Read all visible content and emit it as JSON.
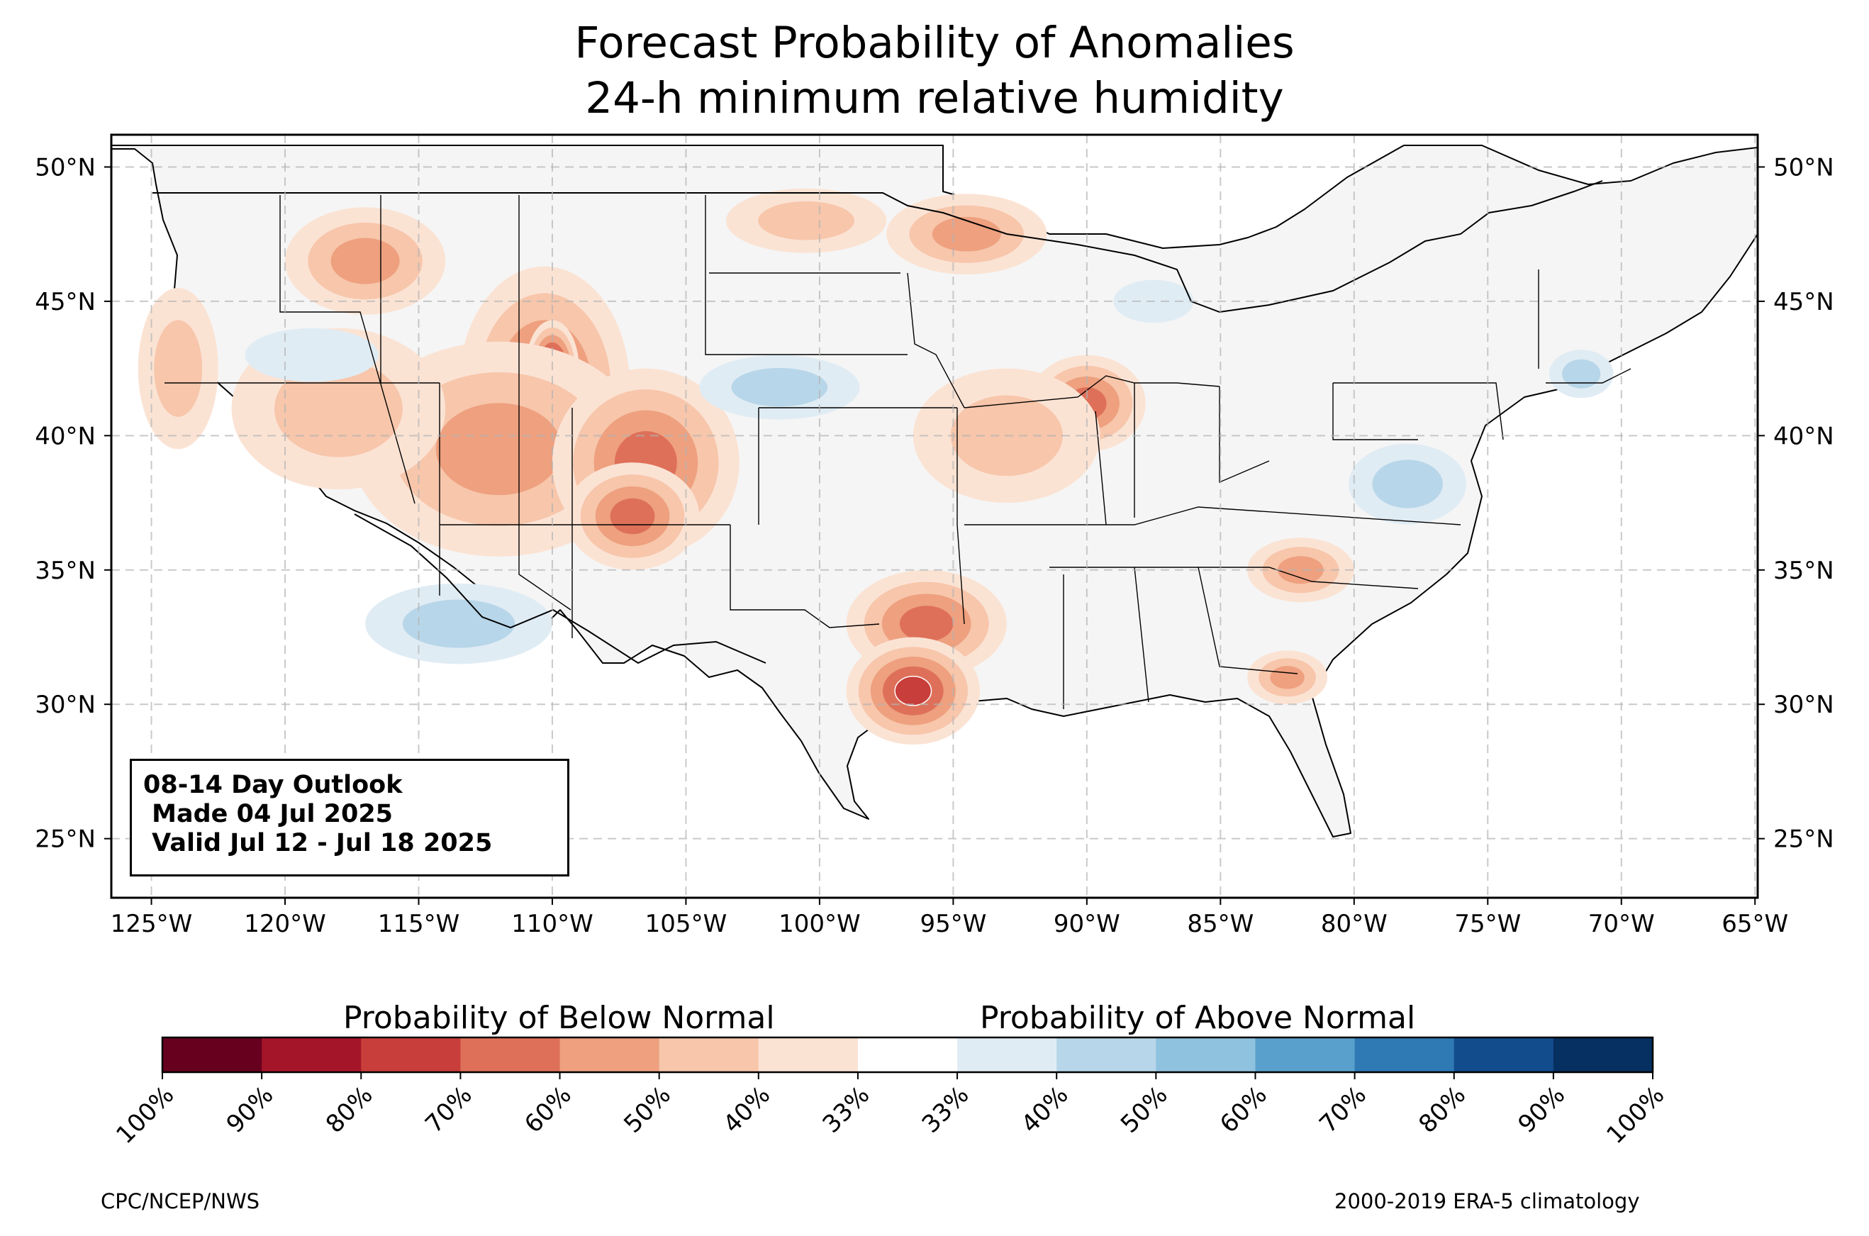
{
  "title": {
    "line1": "Forecast Probability of Anomalies",
    "line2": "24-h minimum relative humidity"
  },
  "map": {
    "lon_range": [
      -126.5,
      -64.9
    ],
    "lat_range": [
      22.8,
      51.2
    ],
    "lon_ticks": [
      "125°W",
      "120°W",
      "115°W",
      "110°W",
      "105°W",
      "100°W",
      "95°W",
      "90°W",
      "85°W",
      "80°W",
      "75°W",
      "70°W",
      "65°W"
    ],
    "lon_tick_values": [
      -125,
      -120,
      -115,
      -110,
      -105,
      -100,
      -95,
      -90,
      -85,
      -80,
      -75,
      -70,
      -65
    ],
    "lat_ticks": [
      "25°N",
      "30°N",
      "35°N",
      "40°N",
      "45°N",
      "50°N"
    ],
    "lat_tick_values": [
      25,
      30,
      35,
      40,
      45,
      50
    ],
    "gridlines": true,
    "land_color": "#f5f5f5",
    "dry_regions": [
      {
        "lon": -110.3,
        "lat": 41.8,
        "rx": 3.2,
        "ry": 4.5,
        "level": 4
      },
      {
        "lon": -110.0,
        "lat": 42.5,
        "rx": 1.0,
        "ry": 1.8,
        "level": 6
      },
      {
        "lon": -112.0,
        "lat": 39.5,
        "rx": 5.5,
        "ry": 4.0,
        "level": 3
      },
      {
        "lon": -106.5,
        "lat": 39.0,
        "rx": 3.5,
        "ry": 3.5,
        "level": 4
      },
      {
        "lon": -107.0,
        "lat": 37.0,
        "rx": 2.5,
        "ry": 2.0,
        "level": 4
      },
      {
        "lon": -117.0,
        "lat": 46.5,
        "rx": 3.0,
        "ry": 2.0,
        "level": 3
      },
      {
        "lon": -118.0,
        "lat": 41.0,
        "rx": 4.0,
        "ry": 3.0,
        "level": 2
      },
      {
        "lon": -96.0,
        "lat": 33.0,
        "rx": 3.0,
        "ry": 2.0,
        "level": 4
      },
      {
        "lon": -96.5,
        "lat": 30.5,
        "rx": 2.5,
        "ry": 2.0,
        "level": 5
      },
      {
        "lon": -90.0,
        "lat": 41.2,
        "rx": 2.2,
        "ry": 1.8,
        "level": 4
      },
      {
        "lon": -93.0,
        "lat": 40.0,
        "rx": 3.5,
        "ry": 2.5,
        "level": 2
      },
      {
        "lon": -94.5,
        "lat": 47.5,
        "rx": 3.0,
        "ry": 1.5,
        "level": 3
      },
      {
        "lon": -100.5,
        "lat": 48.0,
        "rx": 3.0,
        "ry": 1.2,
        "level": 2
      },
      {
        "lon": -82.0,
        "lat": 35.0,
        "rx": 2.0,
        "ry": 1.2,
        "level": 3
      },
      {
        "lon": -82.5,
        "lat": 31.0,
        "rx": 1.5,
        "ry": 1.0,
        "level": 3
      },
      {
        "lon": -124.0,
        "lat": 42.5,
        "rx": 1.5,
        "ry": 3.0,
        "level": 2
      }
    ],
    "moist_regions": [
      {
        "lon": -113.5,
        "lat": 33.0,
        "rx": 3.5,
        "ry": 1.5,
        "level": 2
      },
      {
        "lon": -101.5,
        "lat": 41.8,
        "rx": 3.0,
        "ry": 1.2,
        "level": 2
      },
      {
        "lon": -78.0,
        "lat": 38.2,
        "rx": 2.2,
        "ry": 1.5,
        "level": 2
      },
      {
        "lon": -71.5,
        "lat": 42.3,
        "rx": 1.2,
        "ry": 0.9,
        "level": 2
      },
      {
        "lon": -119.0,
        "lat": 43.0,
        "rx": 2.5,
        "ry": 1.0,
        "level": 1
      },
      {
        "lon": -87.5,
        "lat": 45.0,
        "rx": 1.5,
        "ry": 0.8,
        "level": 1
      }
    ]
  },
  "outlook": {
    "line1": "08-14 Day Outlook",
    "line2": " Made 04 Jul 2025",
    "line3": " Valid Jul 12 - Jul 18 2025"
  },
  "colorbar": {
    "below_label": "Probability of Below Normal",
    "above_label": "Probability of Above Normal",
    "colors": [
      "#67001f",
      "#a51529",
      "#c83e3a",
      "#de7059",
      "#eea07f",
      "#f7c6ab",
      "#fbe3d4",
      "#ffffff",
      "#e0ecf4",
      "#b8d6e9",
      "#8fc2de",
      "#5aa0cc",
      "#2f79b5",
      "#134c8c",
      "#053061"
    ],
    "tick_labels": [
      "100%",
      "90%",
      "80%",
      "70%",
      "60%",
      "50%",
      "40%",
      "33%",
      "33%",
      "40%",
      "50%",
      "60%",
      "70%",
      "80%",
      "90%",
      "100%"
    ]
  },
  "footer": {
    "left": "CPC/NCEP/NWS",
    "right": "2000-2019 ERA-5 climatology"
  }
}
